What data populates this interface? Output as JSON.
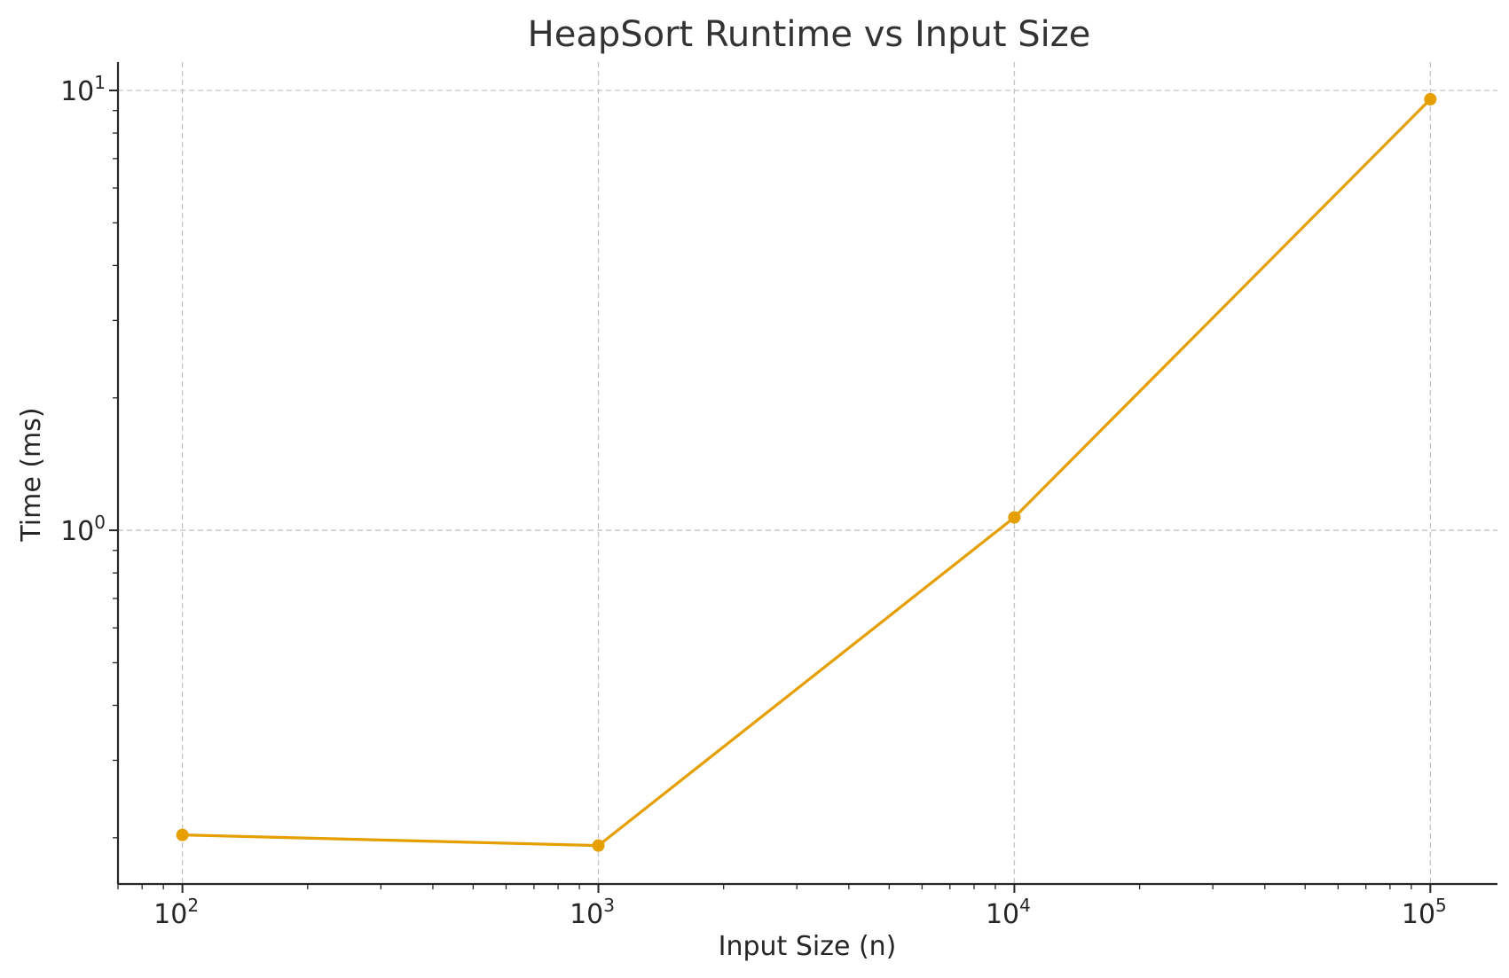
{
  "chart_data": {
    "type": "line",
    "title": "HeapSort Runtime vs Input Size",
    "xlabel": "Input Size (n)",
    "ylabel": "Time (ms)",
    "xscale": "log",
    "yscale": "log",
    "xlim": [
      70,
      145000
    ],
    "ylim": [
      0.157,
      11.6
    ],
    "grid": true,
    "x_ticks": [
      {
        "base": "10",
        "exp": "2",
        "value": 100
      },
      {
        "base": "10",
        "exp": "3",
        "value": 1000
      },
      {
        "base": "10",
        "exp": "4",
        "value": 10000
      },
      {
        "base": "10",
        "exp": "5",
        "value": 100000
      }
    ],
    "y_ticks": [
      {
        "base": "10",
        "exp": "0",
        "value": 1
      },
      {
        "base": "10",
        "exp": "1",
        "value": 10
      }
    ],
    "series": [
      {
        "color": "#E69F00",
        "marker": "circle",
        "x": [
          100,
          1000,
          10000,
          100000
        ],
        "y": [
          0.203,
          0.192,
          1.07,
          9.55
        ]
      }
    ]
  }
}
